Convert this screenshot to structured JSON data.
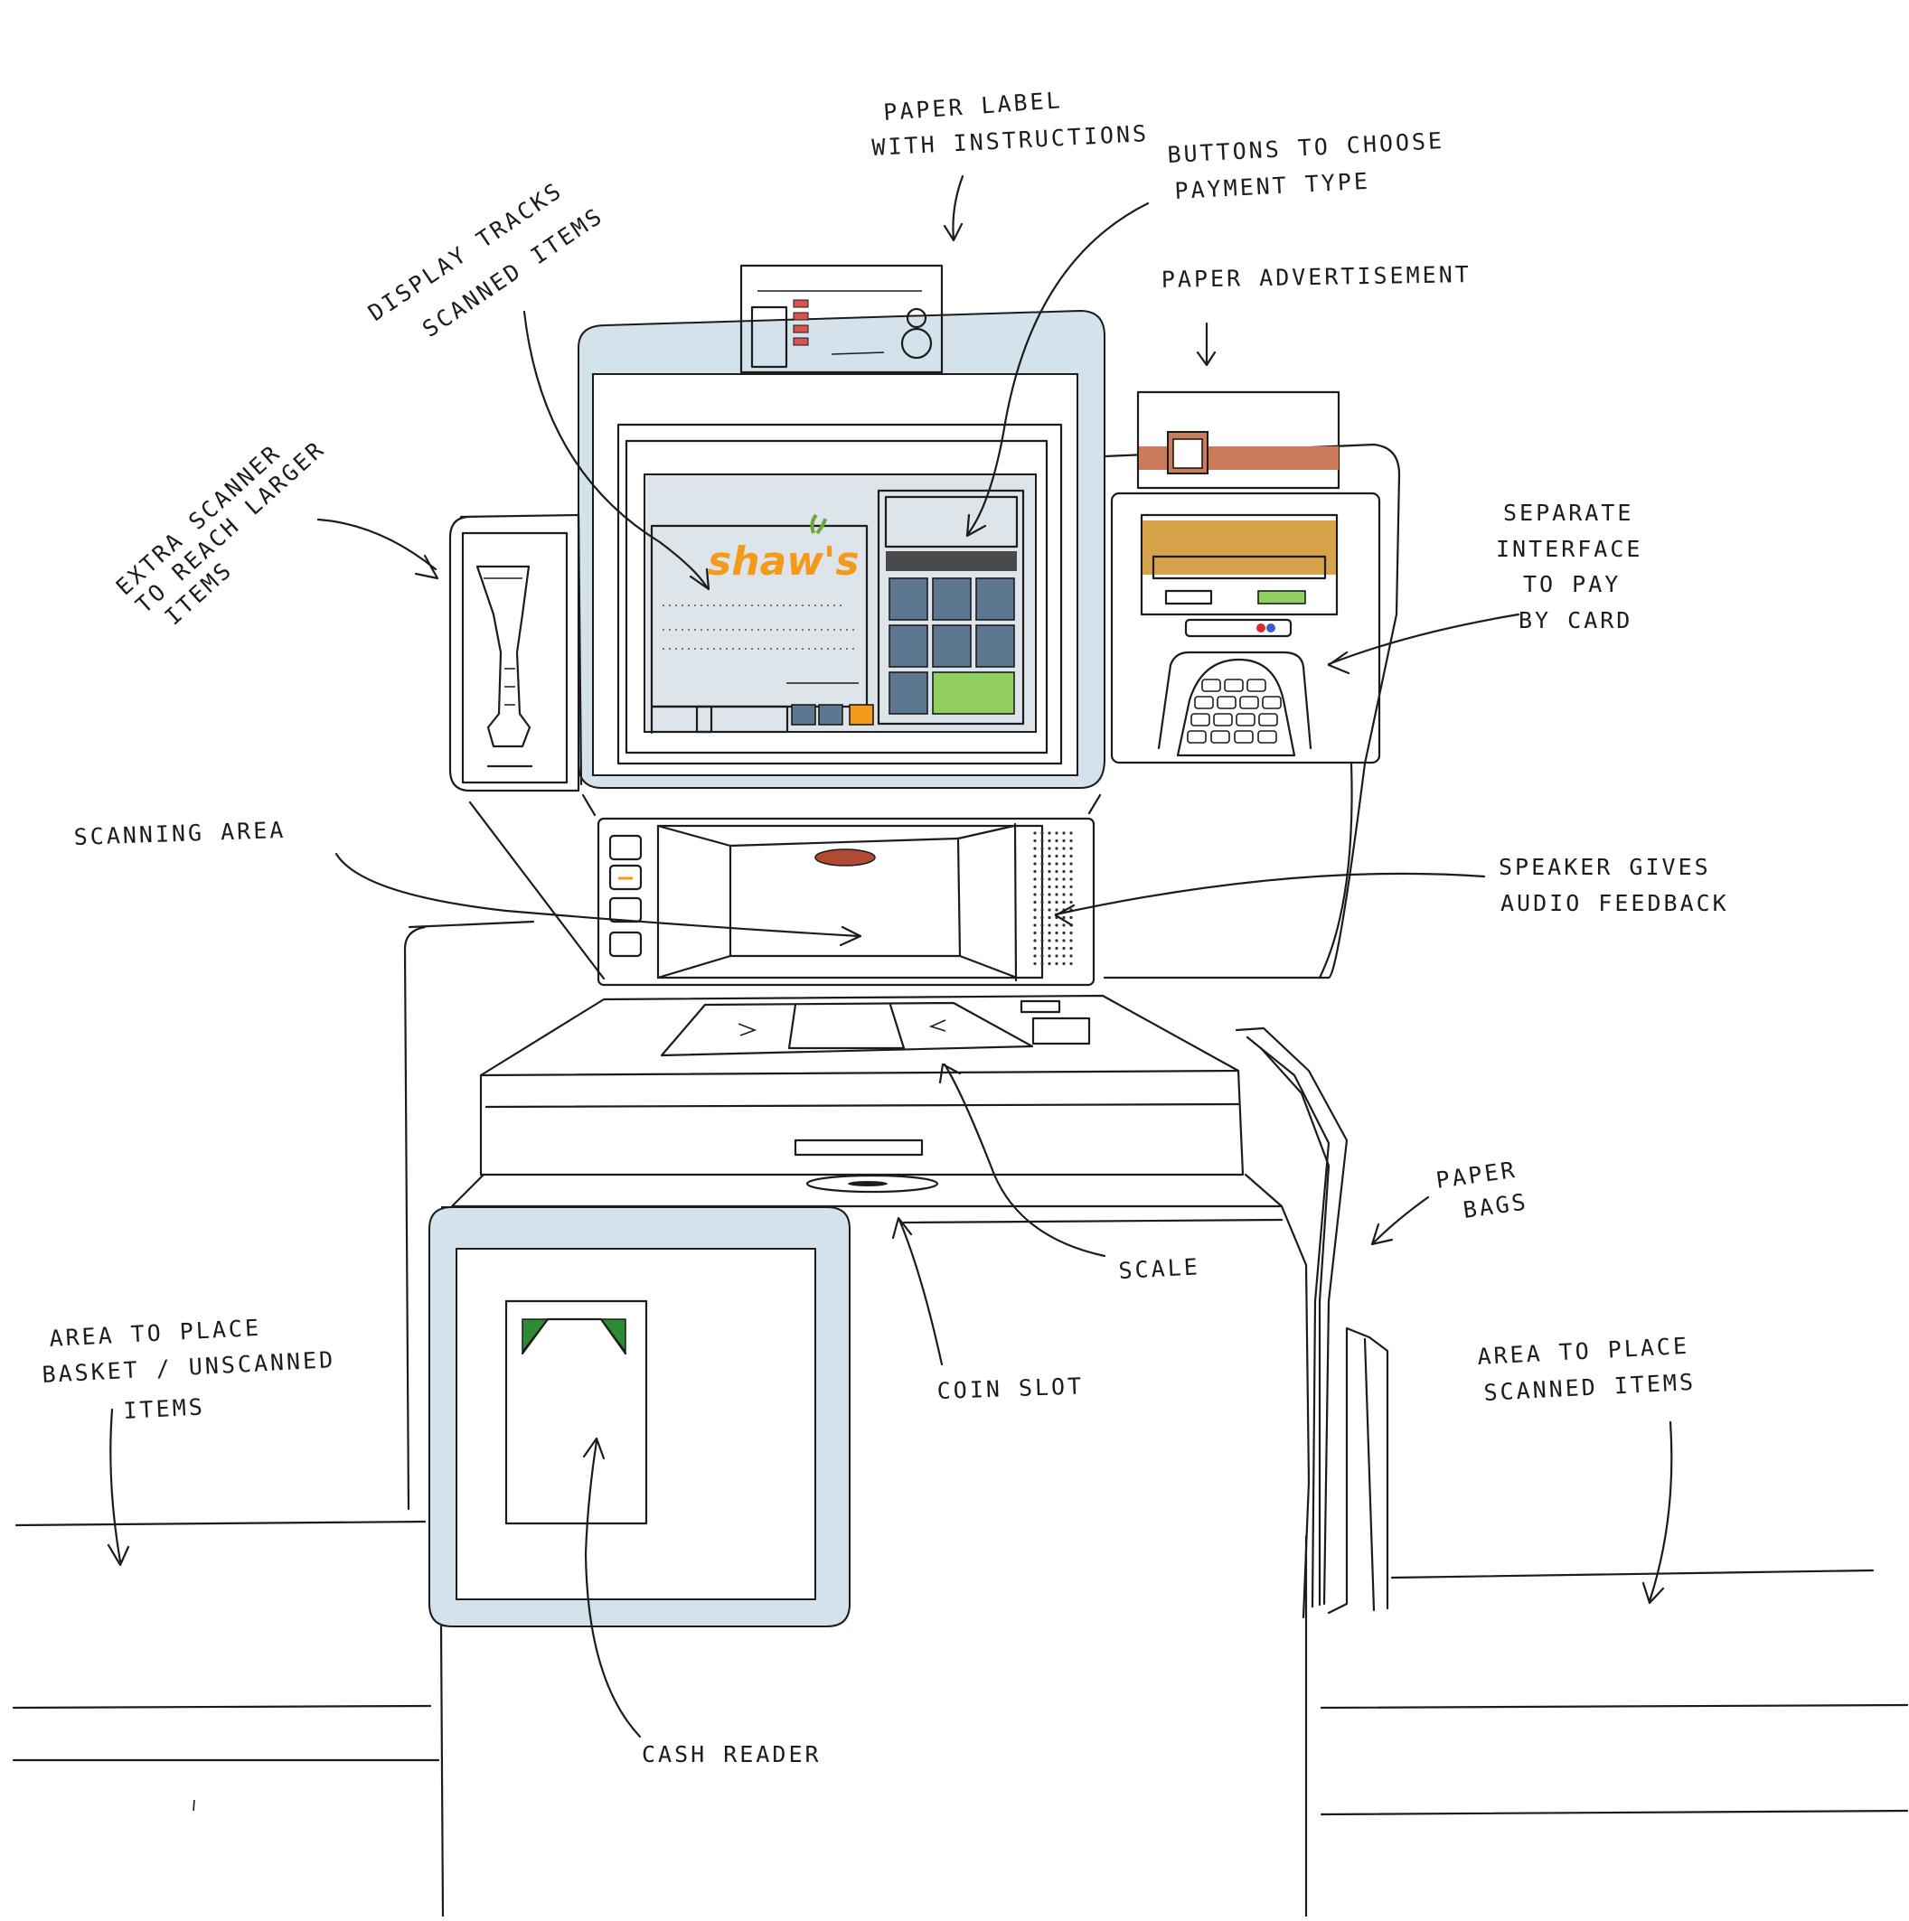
{
  "brand": {
    "logo": "shaw's",
    "logo_color": "#f39a1a",
    "leaf_color": "#6aaa3a"
  },
  "colors": {
    "shell_blue": "#d4e2ec",
    "key_blue": "#5d7791",
    "pay_green": "#8fd061",
    "dark_bar": "#4a4a4a",
    "card_banner": "#d6a34a",
    "ad_stripe": "#cc7b5a",
    "cash_green": "#2f8a34",
    "screen_bg": "#dde4ea",
    "orange_button": "#f39a1a"
  },
  "labels": {
    "paper_label": [
      "PAPER LABEL",
      "WITH INSTRUCTIONS"
    ],
    "payment_buttons": [
      "BUTTONS TO CHOOSE",
      "PAYMENT TYPE"
    ],
    "display": [
      "DISPLAY TRACKS",
      "SCANNED ITEMS"
    ],
    "paper_ad": [
      "PAPER ADVERTISEMENT"
    ],
    "extra_scanner": [
      "EXTRA SCANNER",
      "TO REACH LARGER",
      "ITEMS"
    ],
    "card_interface": [
      "SEPARATE",
      "INTERFACE",
      "TO PAY",
      "BY CARD"
    ],
    "scanning_area": [
      "SCANNING AREA"
    ],
    "speaker": [
      "SPEAKER GIVES",
      "AUDIO FEEDBACK"
    ],
    "paper_bags": [
      "PAPER",
      "BAGS"
    ],
    "scale": [
      "SCALE"
    ],
    "coin_slot": [
      "COIN SLOT"
    ],
    "area_unscanned": [
      "AREA TO PLACE",
      "BASKET / UNSCANNED",
      "ITEMS"
    ],
    "area_scanned": [
      "AREA TO PLACE",
      "SCANNED ITEMS"
    ],
    "cash_reader": [
      "CASH READER"
    ]
  }
}
